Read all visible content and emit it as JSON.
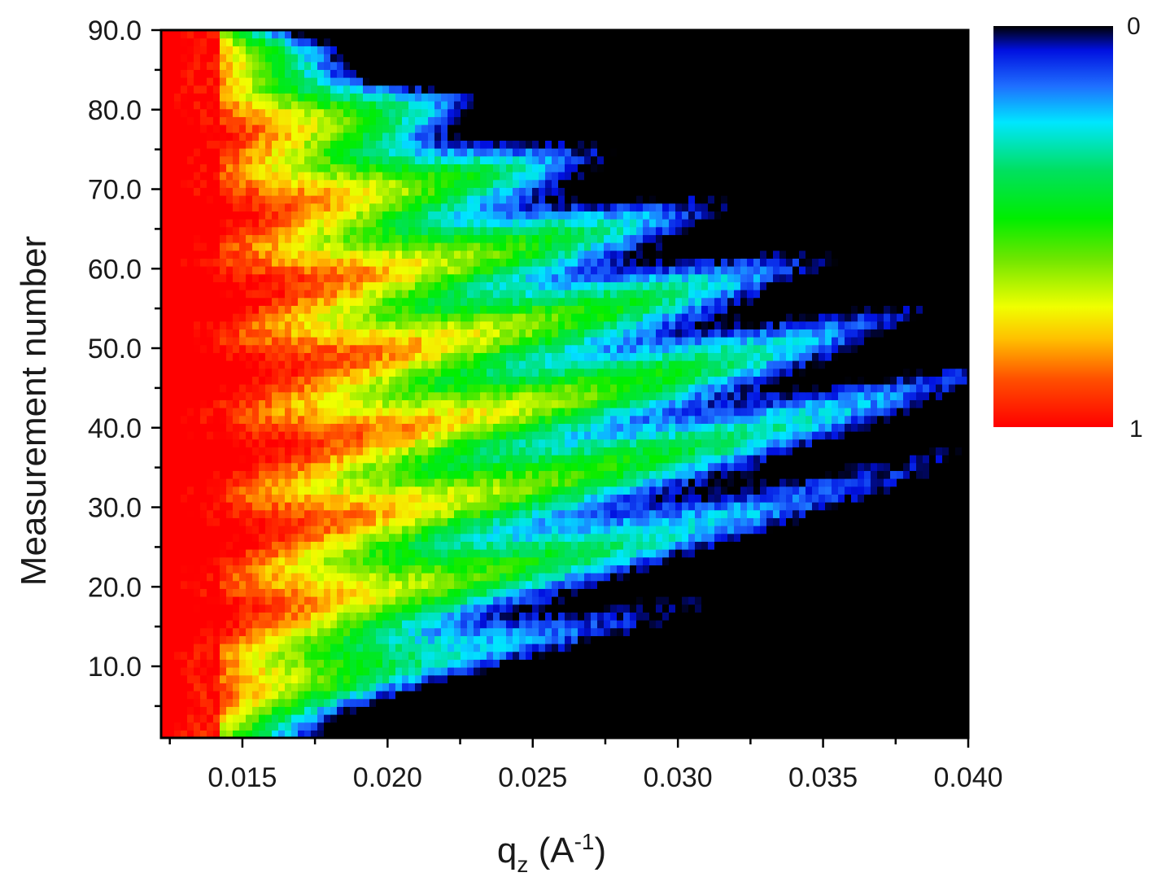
{
  "chart_data": {
    "type": "heatmap",
    "title": "",
    "xlabel_main": "q",
    "xlabel_sub": "z",
    "xlabel_unit_open": " (A",
    "xlabel_unit_sup": "-1",
    "xlabel_unit_close": ")",
    "ylabel": "Measurement number",
    "xlim": [
      0.0122,
      0.04
    ],
    "ylim": [
      1,
      90
    ],
    "x_ticks": [
      "0.015",
      "0.020",
      "0.025",
      "0.030",
      "0.035",
      "0.040"
    ],
    "x_tick_values": [
      0.015,
      0.02,
      0.025,
      0.03,
      0.035,
      0.04
    ],
    "y_ticks": [
      "10.0",
      "20.0",
      "30.0",
      "40.0",
      "50.0",
      "60.0",
      "70.0",
      "80.0",
      "90.0"
    ],
    "y_tick_values": [
      10,
      20,
      30,
      40,
      50,
      60,
      70,
      80,
      90
    ],
    "colorbar": {
      "top_label": "0",
      "bottom_label": "1",
      "min": 0,
      "max": 1,
      "stops": [
        {
          "v": 0.0,
          "color": "#000000"
        },
        {
          "v": 0.06,
          "color": "#0010e0"
        },
        {
          "v": 0.15,
          "color": "#1f6fff"
        },
        {
          "v": 0.24,
          "color": "#00e6ff"
        },
        {
          "v": 0.36,
          "color": "#00e060"
        },
        {
          "v": 0.48,
          "color": "#00ee00"
        },
        {
          "v": 0.58,
          "color": "#6ee600"
        },
        {
          "v": 0.7,
          "color": "#f0ff00"
        },
        {
          "v": 0.78,
          "color": "#ffc000"
        },
        {
          "v": 0.88,
          "color": "#ff5000"
        },
        {
          "v": 1.0,
          "color": "#ff0000"
        }
      ]
    },
    "colormap_note": "",
    "grid": false
  }
}
